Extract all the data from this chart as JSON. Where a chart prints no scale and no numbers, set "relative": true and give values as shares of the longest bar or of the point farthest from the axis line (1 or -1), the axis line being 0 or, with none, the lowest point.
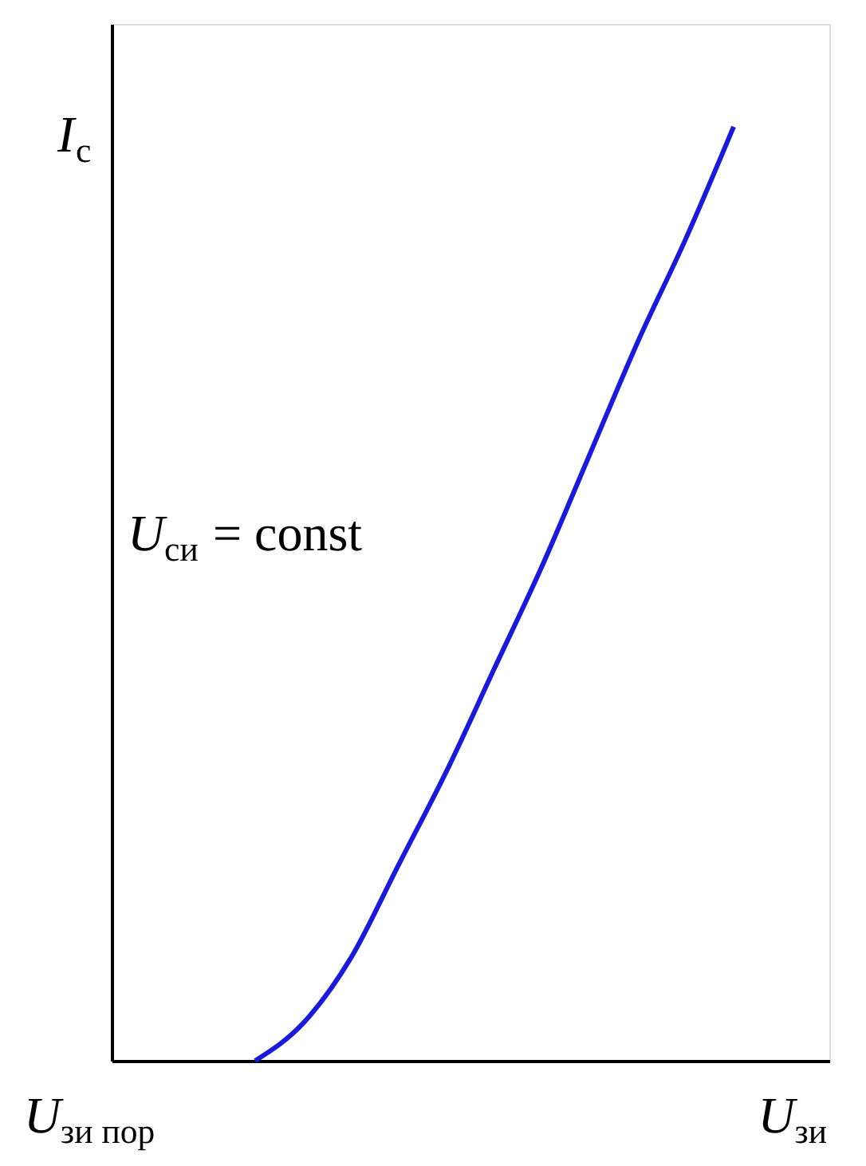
{
  "chart_data": {
    "type": "line",
    "relative": true,
    "xlabel": "U$_{зи}$",
    "ylabel": "I$_{с}$",
    "categories": [
      null,
      null,
      null,
      null,
      null,
      null,
      null,
      null,
      null,
      null,
      null
    ],
    "series": [
      {
        "color": "#1a1adc",
        "values": [
          0,
          0.04,
          0.11,
          0.21,
          0.31,
          0.42,
          0.53,
          0.65,
          0.77,
          0.88,
          1.0
        ]
      }
    ],
    "annotations": [
      "U$_{зи пор}$",
      "U$_{си}$ = const"
    ],
    "grid": false,
    "marker": "none",
    "line_style": "solid"
  }
}
